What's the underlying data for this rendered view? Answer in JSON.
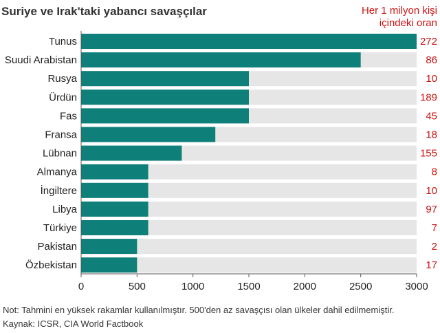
{
  "chart_data": {
    "type": "bar",
    "orientation": "horizontal",
    "title": "Suriye ve Irak'taki yabancı savaşçılar",
    "rate_header_line1": "Her 1 milyon kişi",
    "rate_header_line2": "içindeki oran",
    "categories": [
      "Tunus",
      "Suudi Arabistan",
      "Rusya",
      "Ürdün",
      "Fas",
      "Fransa",
      "Lübnan",
      "Almanya",
      "İngiltere",
      "Libya",
      "Türkiye",
      "Pakistan",
      "Özbekistan"
    ],
    "values": [
      3000,
      2500,
      1500,
      1500,
      1500,
      1200,
      900,
      600,
      600,
      600,
      600,
      500,
      500
    ],
    "rates": [
      "272",
      "86",
      "10",
      "189",
      "45",
      "18",
      "155",
      "8",
      "10",
      "97",
      "7",
      "2",
      "17"
    ],
    "xlim": [
      0,
      3000
    ],
    "xticks": [
      "0",
      "500",
      "1000",
      "1500",
      "2000",
      "2500",
      "3000"
    ],
    "grid": false,
    "colors": {
      "bar": "#0f7f7a",
      "track": "#e6e6e6",
      "rate": "#d01010",
      "axis": "#555555"
    },
    "note": "Not: Tahmini en yüksek rakamlar kullanılmıştır. 500'den az savaşçısı olan ülkeler dahil edilmemiştir.",
    "source": "Kaynak: ICSR, CIA World Factbook"
  }
}
